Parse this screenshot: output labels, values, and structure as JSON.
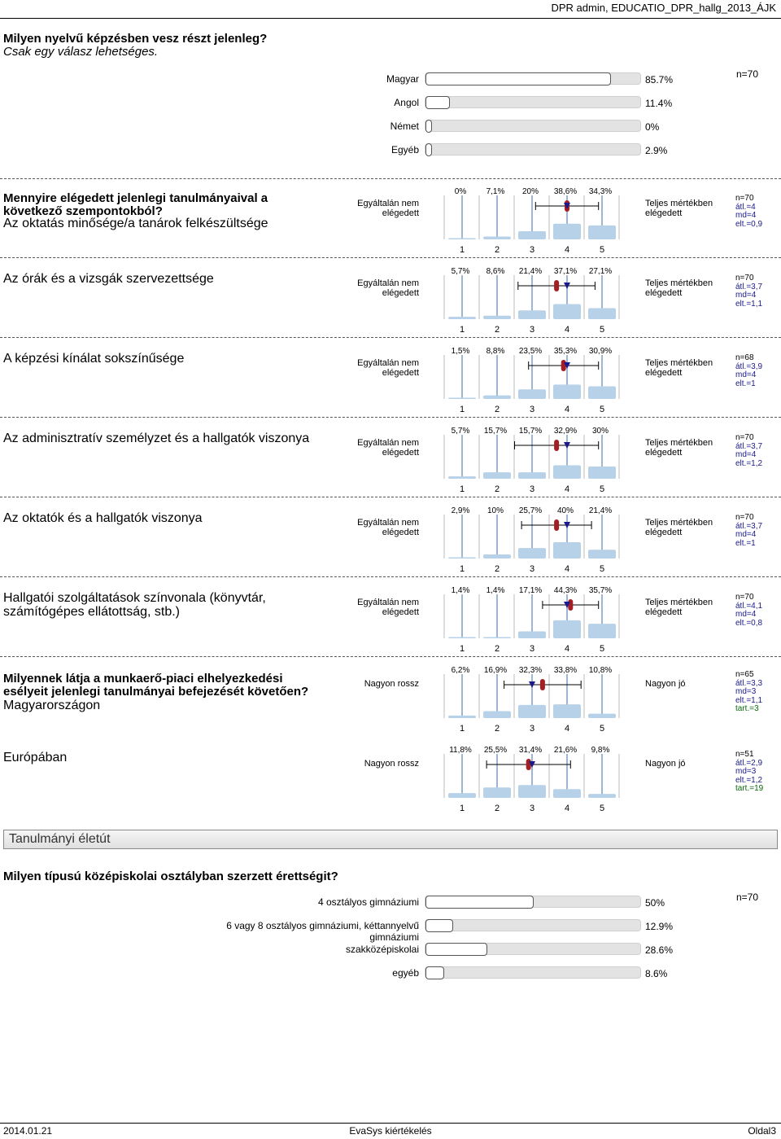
{
  "header": {
    "title": "DPR admin, EDUCATIO_DPR_hallg_2013_ÁJK"
  },
  "q1": {
    "title": "Milyen nyelvű képzésben vesz részt jelenleg?",
    "subtitle": "Csak egy válasz lehetséges.",
    "n": "n=70",
    "chart_data": {
      "type": "bar",
      "categories": [
        "Magyar",
        "Angol",
        "Német",
        "Egyéb"
      ],
      "values": [
        85.7,
        11.4,
        0,
        2.9
      ],
      "labels": [
        "85.7%",
        "11.4%",
        "0%",
        "2.9%"
      ]
    }
  },
  "block1": {
    "title_line1": "Mennyire elégedett jelenlegi tanulmányaival a",
    "title_line2": "következő szempontokból?",
    "left_anchor_l1": "Egyáltalán nem",
    "left_anchor_l2": "elégedett",
    "right_anchor_l1": "Teljes mértékben",
    "right_anchor_l2": "elégedett",
    "scale": [
      "1",
      "2",
      "3",
      "4",
      "5"
    ],
    "items": [
      {
        "text_l1": "Az oktatás minősége/a tanárok felkészültsége",
        "text_l2": "",
        "pcts": [
          "0%",
          "7,1%",
          "20%",
          "38,6%",
          "34,3%"
        ],
        "values": [
          0,
          7.1,
          20,
          38.6,
          34.3
        ],
        "mean": 4.0,
        "sd": 0.9,
        "median": 4,
        "stats": [
          "n=70",
          "átl.=4",
          "md=4",
          "elt.=0,9"
        ]
      },
      {
        "text_l1": "Az órák és a vizsgák szervezettsége",
        "text_l2": "",
        "pcts": [
          "5,7%",
          "8,6%",
          "21,4%",
          "37,1%",
          "27,1%"
        ],
        "values": [
          5.7,
          8.6,
          21.4,
          37.1,
          27.1
        ],
        "mean": 3.7,
        "sd": 1.1,
        "median": 4,
        "stats": [
          "n=70",
          "átl.=3,7",
          "md=4",
          "elt.=1,1"
        ]
      },
      {
        "text_l1": "A képzési kínálat sokszínűsége",
        "text_l2": "",
        "pcts": [
          "1,5%",
          "8,8%",
          "23,5%",
          "35,3%",
          "30,9%"
        ],
        "values": [
          1.5,
          8.8,
          23.5,
          35.3,
          30.9
        ],
        "mean": 3.9,
        "sd": 1.0,
        "median": 4,
        "stats": [
          "n=68",
          "átl.=3,9",
          "md=4",
          "elt.=1"
        ]
      },
      {
        "text_l1": "Az adminisztratív személyzet és a hallgatók viszonya",
        "text_l2": "",
        "pcts": [
          "5,7%",
          "15,7%",
          "15,7%",
          "32,9%",
          "30%"
        ],
        "values": [
          5.7,
          15.7,
          15.7,
          32.9,
          30
        ],
        "mean": 3.7,
        "sd": 1.2,
        "median": 4,
        "stats": [
          "n=70",
          "átl.=3,7",
          "md=4",
          "elt.=1,2"
        ]
      },
      {
        "text_l1": "Az oktatók és a hallgatók viszonya",
        "text_l2": "",
        "pcts": [
          "2,9%",
          "10%",
          "25,7%",
          "40%",
          "21,4%"
        ],
        "values": [
          2.9,
          10,
          25.7,
          40,
          21.4
        ],
        "mean": 3.7,
        "sd": 1.0,
        "median": 4,
        "stats": [
          "n=70",
          "átl.=3,7",
          "md=4",
          "elt.=1"
        ]
      },
      {
        "text_l1": "Hallgatói szolgáltatások színvonala (könyvtár,",
        "text_l2": "számítógépes ellátottság, stb.)",
        "pcts": [
          "1,4%",
          "1,4%",
          "17,1%",
          "44,3%",
          "35,7%"
        ],
        "values": [
          1.4,
          1.4,
          17.1,
          44.3,
          35.7
        ],
        "mean": 4.1,
        "sd": 0.8,
        "median": 4,
        "stats": [
          "n=70",
          "átl.=4,1",
          "md=4",
          "elt.=0,8"
        ]
      }
    ]
  },
  "block2": {
    "title_line1": "Milyennek látja a munkaerő-piaci elhelyezkedési",
    "title_line2": "esélyeit jelenlegi tanulmányai befejezését követően?",
    "left_anchor": "Nagyon rossz",
    "right_anchor": "Nagyon jó",
    "items": [
      {
        "text": "Magyarországon",
        "pcts": [
          "6,2%",
          "16,9%",
          "32,3%",
          "33,8%",
          "10,8%"
        ],
        "values": [
          6.2,
          16.9,
          32.3,
          33.8,
          10.8
        ],
        "mean": 3.3,
        "sd": 1.1,
        "median": 3,
        "stats": [
          "n=65",
          "átl.=3,3",
          "md=3",
          "elt.=1,1"
        ],
        "tart": "tart.=3"
      },
      {
        "text": "Európában",
        "pcts": [
          "11,8%",
          "25,5%",
          "31,4%",
          "21,6%",
          "9,8%"
        ],
        "values": [
          11.8,
          25.5,
          31.4,
          21.6,
          9.8
        ],
        "mean": 2.9,
        "sd": 1.2,
        "median": 3,
        "stats": [
          "n=51",
          "átl.=2,9",
          "md=3",
          "elt.=1,2"
        ],
        "tart": "tart.=19"
      }
    ]
  },
  "section": {
    "title": "Tanulmányi életút"
  },
  "q3": {
    "title": "Milyen típusú középiskolai osztályban szerzett érettségit?",
    "n": "n=70",
    "chart_data": {
      "type": "bar",
      "categories": [
        "4 osztályos gimnáziumi",
        "6 vagy 8 osztályos gimnáziumi, kéttannyelvű gimnáziumi",
        "szakközépiskolai",
        "egyéb"
      ],
      "values": [
        50,
        12.9,
        28.6,
        8.6
      ],
      "labels": [
        "50%",
        "12.9%",
        "28.6%",
        "8.6%"
      ]
    }
  },
  "footer": {
    "date": "2014.01.21",
    "center": "EvaSys kiértékelés",
    "page": "Oldal3"
  }
}
